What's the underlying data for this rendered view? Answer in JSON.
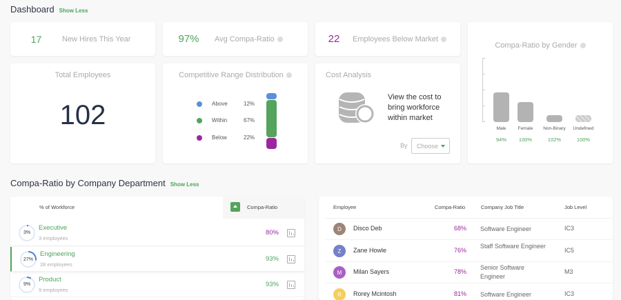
{
  "header": {
    "title": "Dashboard",
    "toggle": "Show Less"
  },
  "stats": [
    {
      "value": "17",
      "label": "New Hires This Year",
      "color": "#4ea35a"
    },
    {
      "value": "97%",
      "label": "Avg Compa-Ratio",
      "color": "#4ea35a"
    },
    {
      "value": "22",
      "label": "Employees Below Market",
      "color": "#9b27a0"
    }
  ],
  "total": {
    "title": "Total Employees",
    "value": "102"
  },
  "range": {
    "title": "Competitive Range Distribution",
    "items": [
      {
        "label": "Above",
        "value": "12%",
        "color": "#5b8edc"
      },
      {
        "label": "Within",
        "value": "67%",
        "color": "#55a35d"
      },
      {
        "label": "Below",
        "value": "22%",
        "color": "#9b27a0"
      }
    ]
  },
  "cost": {
    "title": "Cost Analysis",
    "text": "View the cost to bring workforce within market",
    "by": "By",
    "select": "Choose"
  },
  "gender": {
    "title": "Compa-Ratio by Gender",
    "bars": [
      {
        "label": "Male",
        "value": "94%",
        "level": 0.47
      },
      {
        "label": "Female",
        "value": "100%",
        "level": 0.32
      },
      {
        "label": "Non-Binary",
        "value": "102%",
        "level": 0.11
      },
      {
        "label": "Undefined",
        "value": "100%",
        "level": 0.11,
        "hatched": true
      }
    ]
  },
  "dept": {
    "title": "Compa-Ratio by Company Department",
    "toggle": "Show Less",
    "col_workforce": "% of Workforce",
    "col_ratio": "Compa-Ratio",
    "rows": [
      {
        "pct": "3%",
        "pct_value": 3,
        "name": "Executive",
        "count": "3 employees",
        "ratio": "80%",
        "ratio_color": "#9b27a0"
      },
      {
        "pct": "27%",
        "pct_value": 27,
        "name": "Engineering",
        "count": "28 employees",
        "ratio": "93%",
        "ratio_color": "#4ea35a",
        "selected": true
      },
      {
        "pct": "9%",
        "pct_value": 9,
        "name": "Product",
        "count": "9 employees",
        "ratio": "93%",
        "ratio_color": "#4ea35a"
      }
    ]
  },
  "employees": {
    "cols": [
      "Employee",
      "Compa-Ratio",
      "Company Job Title",
      "Job Level"
    ],
    "rows": [
      {
        "initial": "D",
        "name": "Disco Deb",
        "ratio": "68%",
        "title": "Software Engineer",
        "level": "IC3",
        "color": "#9c8577"
      },
      {
        "initial": "Z",
        "name": "Zane Howle",
        "ratio": "76%",
        "title": "Staff Software Engineer",
        "level": "IC5",
        "color": "#7480c8"
      },
      {
        "initial": "M",
        "name": "Milan Sayers",
        "ratio": "78%",
        "title": "Senior Software Engineer",
        "level": "M3",
        "color": "#a95fc4"
      },
      {
        "initial": "R",
        "name": "Rorey Mcintosh",
        "ratio": "81%",
        "title": "Software Engineer",
        "level": "IC3",
        "color": "#f5cf5a"
      }
    ]
  }
}
